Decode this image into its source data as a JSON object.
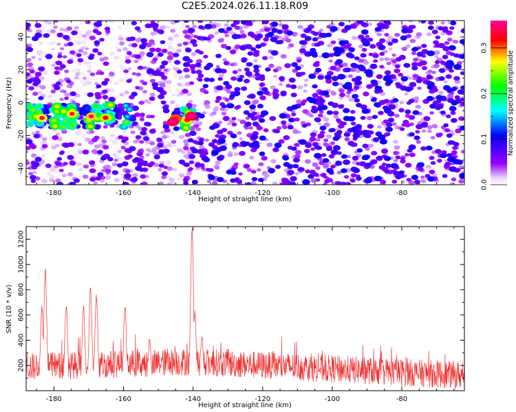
{
  "title": "C2E5.2024.026.11.18.R09",
  "chart_data": [
    {
      "type": "heatmap",
      "xlabel": "Height of straight line (km)",
      "ylabel": "Frequency (Hz)",
      "xlim": [
        -188,
        -62
      ],
      "ylim": [
        -50,
        50
      ],
      "xticks": [
        -180,
        -160,
        -140,
        -120,
        -100,
        -80
      ],
      "yticks": [
        -40,
        -20,
        0,
        20,
        40
      ],
      "colorbar": {
        "label": "Normalized spectral amplitude",
        "range": [
          0.0,
          0.36
        ],
        "ticks": [
          0.0,
          0.1,
          0.2,
          0.3
        ],
        "colormap": "rainbow (white-violet-blue-cyan-green-yellow-red-magenta)"
      },
      "features": [
        {
          "x": [
            -188,
            -158
          ],
          "y_center": -8,
          "y_halfwidth": 7,
          "peak_amplitude": 0.3,
          "note": "strong band"
        },
        {
          "x": [
            -146,
            -140
          ],
          "y_center": -10,
          "y_halfwidth": 6,
          "peak_amplitude": 0.34,
          "note": "strongest cluster"
        },
        {
          "x": [
            -140,
            -62
          ],
          "y_center": 0,
          "y_halfwidth": 50,
          "peak_amplitude": 0.12,
          "note": "broadband noise"
        }
      ],
      "white_gaps_x": [
        -182,
        -172,
        -162,
        -145
      ],
      "grid": false,
      "legend": "none"
    },
    {
      "type": "line",
      "xlabel": "Height of straight line (km)",
      "ylabel": "SNR (10 * v/v)",
      "xlim": [
        -188,
        -62
      ],
      "ylim": [
        0,
        1300
      ],
      "xticks": [
        -180,
        -160,
        -140,
        -120,
        -100,
        -80
      ],
      "yticks": [
        200,
        400,
        600,
        800,
        1000,
        1200
      ],
      "color": "#f03030",
      "baseline": {
        "x": [
          -188,
          -140,
          -62
        ],
        "level": [
          190,
          230,
          120
        ],
        "noise_amplitude": 110
      },
      "peaks": [
        {
          "x": -182.5,
          "y": 960
        },
        {
          "x": -183.5,
          "y": 660
        },
        {
          "x": -176.5,
          "y": 665
        },
        {
          "x": -171.5,
          "y": 660
        },
        {
          "x": -169.5,
          "y": 800
        },
        {
          "x": -167.8,
          "y": 740
        },
        {
          "x": -159.6,
          "y": 660
        },
        {
          "x": -152.5,
          "y": 400
        },
        {
          "x": -140.3,
          "y": 1290
        },
        {
          "x": -139.5,
          "y": 620
        },
        {
          "x": -137.5,
          "y": 430
        }
      ],
      "grid": false,
      "legend": "none"
    }
  ]
}
